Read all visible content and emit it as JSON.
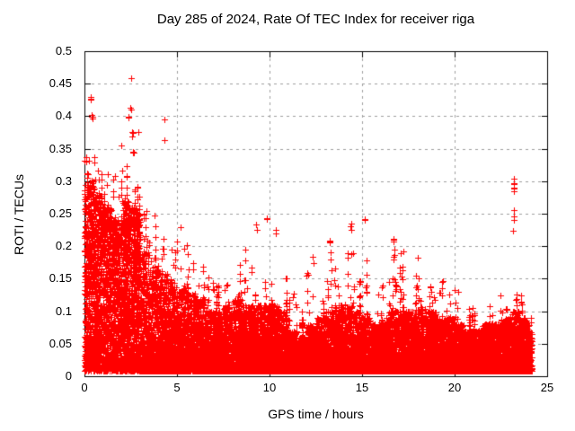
{
  "page": {
    "background": "#ffffff"
  },
  "chart": {
    "title": "Day 285 of 2024, Rate Of TEC Index for receiver riga",
    "xlabel": "GPS time / hours",
    "ylabel": "ROTI / TECUs"
  },
  "chart_data": {
    "type": "scatter",
    "title": "Day 285 of 2024, Rate Of TEC Index for receiver riga",
    "xlabel": "GPS time / hours",
    "ylabel": "ROTI / TECUs",
    "xlim": [
      0,
      25
    ],
    "ylim": [
      0,
      0.5
    ],
    "x_ticks": [
      0,
      5,
      10,
      15,
      20,
      25
    ],
    "x_tick_labels": [
      "0",
      "5",
      "10",
      "15",
      "20",
      "25"
    ],
    "y_ticks": [
      0,
      0.05,
      0.1,
      0.15,
      0.2,
      0.25,
      0.3,
      0.35,
      0.4,
      0.45,
      0.5
    ],
    "y_tick_labels": [
      "0",
      "0.05",
      "0.1",
      "0.15",
      "0.2",
      "0.25",
      "0.3",
      "0.35",
      "0.4",
      "0.45",
      "0.5"
    ],
    "grid": true,
    "legend": "none",
    "marker": "plus",
    "marker_size_px": 7,
    "marker_color": "#ff0000",
    "grid_color": "#9e9e9e",
    "axis_color": "#000000",
    "x_data_range_hours": [
      0,
      24.17
    ],
    "envelope_bin_width_hours": 0.5,
    "envelope": {
      "bin_start_hours": [
        0,
        0.5,
        1,
        1.5,
        2,
        2.5,
        3,
        3.5,
        4,
        4.5,
        5,
        5.5,
        6,
        6.5,
        7,
        7.5,
        8,
        8.5,
        9,
        9.5,
        10,
        10.5,
        11,
        11.5,
        12,
        12.5,
        13,
        13.5,
        14,
        14.5,
        15,
        15.5,
        16,
        16.5,
        17,
        17.5,
        18,
        18.5,
        19,
        19.5,
        20,
        20.5,
        21,
        21.5,
        22,
        22.5,
        23,
        23.5,
        24
      ],
      "dense_top": [
        0.3,
        0.28,
        0.26,
        0.24,
        0.27,
        0.26,
        0.21,
        0.17,
        0.16,
        0.15,
        0.14,
        0.13,
        0.12,
        0.1,
        0.1,
        0.11,
        0.12,
        0.11,
        0.11,
        0.11,
        0.11,
        0.1,
        0.07,
        0.06,
        0.08,
        0.09,
        0.1,
        0.11,
        0.11,
        0.1,
        0.09,
        0.08,
        0.09,
        0.1,
        0.1,
        0.1,
        0.11,
        0.1,
        0.09,
        0.09,
        0.08,
        0.07,
        0.07,
        0.08,
        0.08,
        0.09,
        0.1,
        0.09,
        0.07
      ],
      "max": [
        0.36,
        0.34,
        0.32,
        0.33,
        0.36,
        0.42,
        0.3,
        0.27,
        0.25,
        0.24,
        0.24,
        0.22,
        0.2,
        0.17,
        0.16,
        0.2,
        0.21,
        0.21,
        0.21,
        0.2,
        0.2,
        0.19,
        0.14,
        0.12,
        0.19,
        0.17,
        0.2,
        0.22,
        0.23,
        0.22,
        0.22,
        0.17,
        0.18,
        0.2,
        0.21,
        0.19,
        0.19,
        0.17,
        0.15,
        0.15,
        0.15,
        0.12,
        0.11,
        0.12,
        0.14,
        0.15,
        0.16,
        0.13,
        0.1
      ]
    },
    "outlier_clusters": [
      {
        "t": 0.15,
        "v": 0.31,
        "n": 3
      },
      {
        "t": 0.35,
        "v": 0.43,
        "n": 3
      },
      {
        "t": 0.42,
        "v": 0.4,
        "n": 4
      },
      {
        "t": 2.4,
        "v": 0.395,
        "n": 2
      },
      {
        "t": 2.5,
        "v": 0.415,
        "n": 2
      },
      {
        "t": 2.52,
        "v": 0.457,
        "n": 1
      },
      {
        "t": 2.6,
        "v": 0.37,
        "n": 3
      },
      {
        "t": 2.65,
        "v": 0.345,
        "n": 3
      },
      {
        "t": 4.3,
        "v": 0.36,
        "n": 1
      },
      {
        "t": 4.32,
        "v": 0.397,
        "n": 2
      },
      {
        "t": 9.3,
        "v": 0.23,
        "n": 2
      },
      {
        "t": 9.85,
        "v": 0.243,
        "n": 2
      },
      {
        "t": 10.35,
        "v": 0.22,
        "n": 2
      },
      {
        "t": 13.25,
        "v": 0.205,
        "n": 4
      },
      {
        "t": 14.4,
        "v": 0.23,
        "n": 3
      },
      {
        "t": 15.15,
        "v": 0.245,
        "n": 3
      },
      {
        "t": 16.7,
        "v": 0.21,
        "n": 3
      },
      {
        "t": 23.18,
        "v": 0.228,
        "n": 1
      },
      {
        "t": 23.2,
        "v": 0.245,
        "n": 2
      },
      {
        "t": 23.22,
        "v": 0.26,
        "n": 1
      },
      {
        "t": 23.2,
        "v": 0.285,
        "n": 3
      },
      {
        "t": 23.2,
        "v": 0.3,
        "n": 3
      }
    ],
    "render": {
      "seed": 20241011,
      "points_per_bin": 390,
      "uniform_spread_bins": 6
    }
  }
}
